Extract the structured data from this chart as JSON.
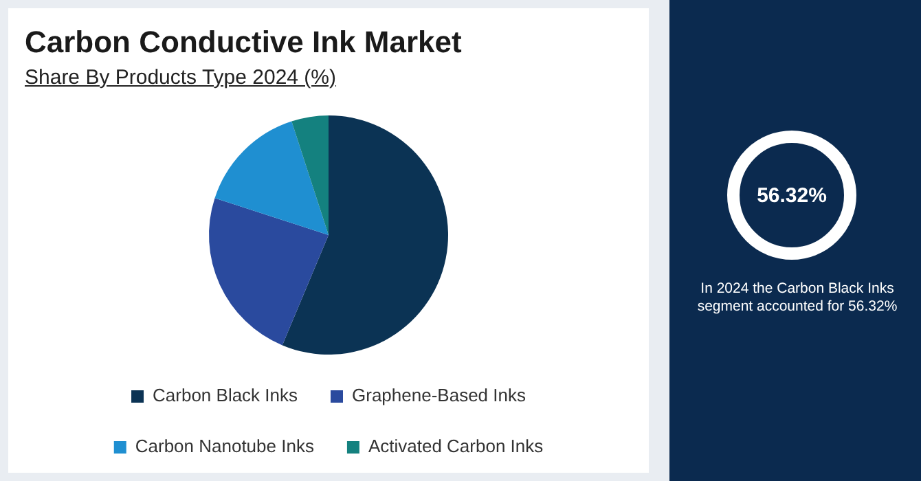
{
  "chart_data": {
    "type": "pie",
    "title": "Carbon Conductive Ink Market",
    "subtitle": "Share By Products Type 2024 (%)",
    "categories": [
      "Carbon Black Inks",
      "Graphene-Based Inks",
      "Carbon Nanotube Inks",
      "Activated Carbon Inks"
    ],
    "values": [
      56.32,
      23.68,
      15,
      5
    ],
    "colors": [
      "#0b3354",
      "#2a4a9e",
      "#1f8fd1",
      "#14817f"
    ],
    "legend": "bottom",
    "annotations": [
      "56.32%",
      "In 2024 the Carbon Black Inks segment accounted for 56.32%"
    ]
  }
}
